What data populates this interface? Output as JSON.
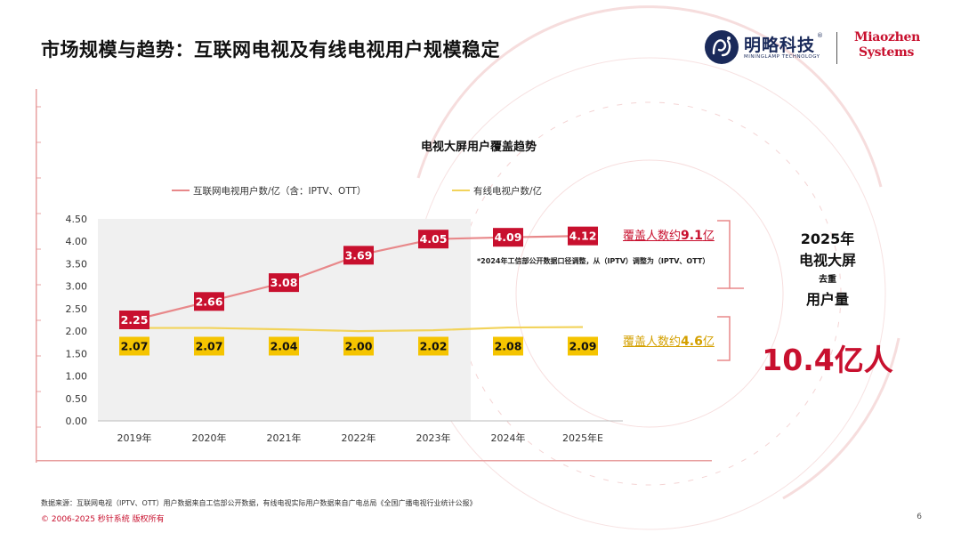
{
  "page": {
    "title": "市场规模与趋势：互联网电视及有线电视用户规模稳定",
    "logos": {
      "company_cn": "明略科技",
      "company_en": "MININGLAMP TECHNOLOGY",
      "registered_mark": "®",
      "miaozhen_line1": "Miaozhen",
      "miaozhen_line2": "Systems"
    }
  },
  "chart_data": {
    "type": "line",
    "title": "电视大屏用户覆盖趋势",
    "categories": [
      "2019年",
      "2020年",
      "2021年",
      "2022年",
      "2023年",
      "2024年",
      "2025年E"
    ],
    "series": [
      {
        "name": "互联网电视用户数/亿（含：IPTV、OTT）",
        "color": "#e8888a",
        "label_color": "#c8102e",
        "values": [
          2.25,
          2.66,
          3.08,
          3.69,
          4.05,
          4.09,
          4.12
        ]
      },
      {
        "name": "有线电视户数/亿",
        "color": "#f2d35b",
        "label_color": "#f5c400",
        "values": [
          2.07,
          2.07,
          2.04,
          2.0,
          2.02,
          2.08,
          2.09
        ]
      }
    ],
    "ylim": [
      0,
      4.5
    ],
    "yticks": [
      "0.00",
      "0.50",
      "1.00",
      "1.50",
      "2.00",
      "2.50",
      "3.00",
      "3.50",
      "4.00",
      "4.50"
    ],
    "shaded_range": [
      "2019年",
      "2023年"
    ],
    "legend": "top",
    "grid": false,
    "annotation": "*2024年工信部公开数据口径调整，从（IPTV）调整为（IPTV、OTT）"
  },
  "coverage": {
    "internet_prefix": "覆盖人数约",
    "internet_value": "9.1",
    "internet_unit": "亿",
    "cable_prefix": "覆盖人数约",
    "cable_value": "4.6",
    "cable_unit": "亿"
  },
  "summary": {
    "year": "2025年",
    "line1": "电视大屏",
    "dedup": "去重",
    "line2": "用户量",
    "value": "10.4亿人"
  },
  "footer": {
    "source": "数据来源：互联网电视（IPTV、OTT）用户数据来自工信部公开数据，有线电视实际用户数据来自广电总局《全国广播电视行业统计公报》",
    "copyright": "© 2006-2025 秒针系统 版权所有",
    "page_number": "6"
  }
}
